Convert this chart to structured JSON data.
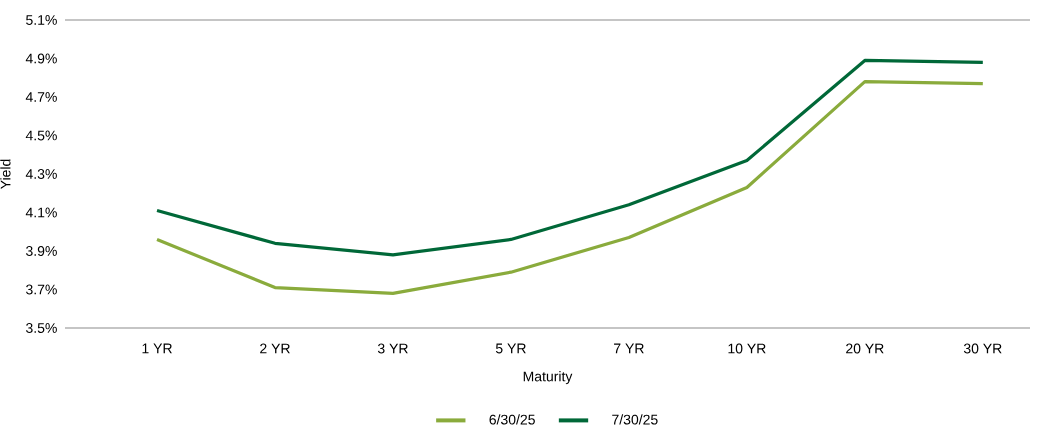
{
  "chart_data": {
    "type": "line",
    "xlabel": "Maturity",
    "ylabel": "Yield",
    "categories": [
      "1 YR",
      "2 YR",
      "3 YR",
      "5 YR",
      "7 YR",
      "10 YR",
      "20 YR",
      "30 YR"
    ],
    "series": [
      {
        "name": "6/30/25",
        "color": "#8aab3c",
        "values": [
          3.96,
          3.71,
          3.68,
          3.79,
          3.97,
          4.23,
          4.78,
          4.77
        ]
      },
      {
        "name": "7/30/25",
        "color": "#006838",
        "values": [
          4.11,
          3.94,
          3.88,
          3.96,
          4.14,
          4.37,
          4.89,
          4.88
        ]
      }
    ],
    "ylim": [
      3.5,
      5.1
    ],
    "yticks": [
      {
        "value": 3.5,
        "label": "3.5%"
      },
      {
        "value": 3.7,
        "label": "3.7%"
      },
      {
        "value": 3.9,
        "label": "3.9%"
      },
      {
        "value": 4.1,
        "label": "4.1%"
      },
      {
        "value": 4.3,
        "label": "4.3%"
      },
      {
        "value": 4.5,
        "label": "4.5%"
      },
      {
        "value": 4.7,
        "label": "4.7%"
      },
      {
        "value": 4.9,
        "label": "4.9%"
      },
      {
        "value": 5.1,
        "label": "5.1%"
      }
    ],
    "grid": false,
    "legend": "bottom",
    "marker": "none",
    "line_style": "solid"
  }
}
